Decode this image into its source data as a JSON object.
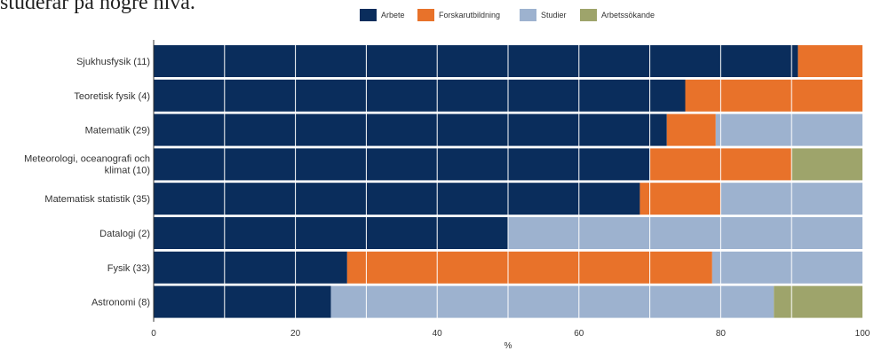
{
  "heading": "studerar på högre nivå.",
  "chart_data": {
    "type": "bar",
    "orientation": "horizontal",
    "stacked": true,
    "xlabel": "%",
    "xlim": [
      0,
      100
    ],
    "xticks": [
      0,
      20,
      40,
      60,
      80,
      100
    ],
    "grid": true,
    "legend_position": "top-center",
    "categories": [
      "Sjukhusfysik (11)",
      "Teoretisk fysik (4)",
      "Matematik (29)",
      "Meteorologi, oceanografi och klimat (10)",
      "Matematisk statistik (35)",
      "Datalogi (2)",
      "Fysik (33)",
      "Astronomi (8)"
    ],
    "series": [
      {
        "name": "Arbete",
        "color": "#0a2d5c",
        "values": [
          90.9,
          75.0,
          72.4,
          70.0,
          68.6,
          50.0,
          27.3,
          25.0
        ]
      },
      {
        "name": "Forskarutbildning",
        "color": "#e8722a",
        "values": [
          9.1,
          25.0,
          6.9,
          20.0,
          11.4,
          0,
          51.5,
          0
        ]
      },
      {
        "name": "Studier",
        "color": "#9db2cf",
        "values": [
          0,
          0,
          20.7,
          0,
          20.0,
          50.0,
          21.2,
          62.5
        ]
      },
      {
        "name": "Arbetssökande",
        "color": "#9ea46b",
        "values": [
          0,
          0,
          0,
          10.0,
          0,
          0,
          0,
          12.5
        ]
      }
    ]
  }
}
